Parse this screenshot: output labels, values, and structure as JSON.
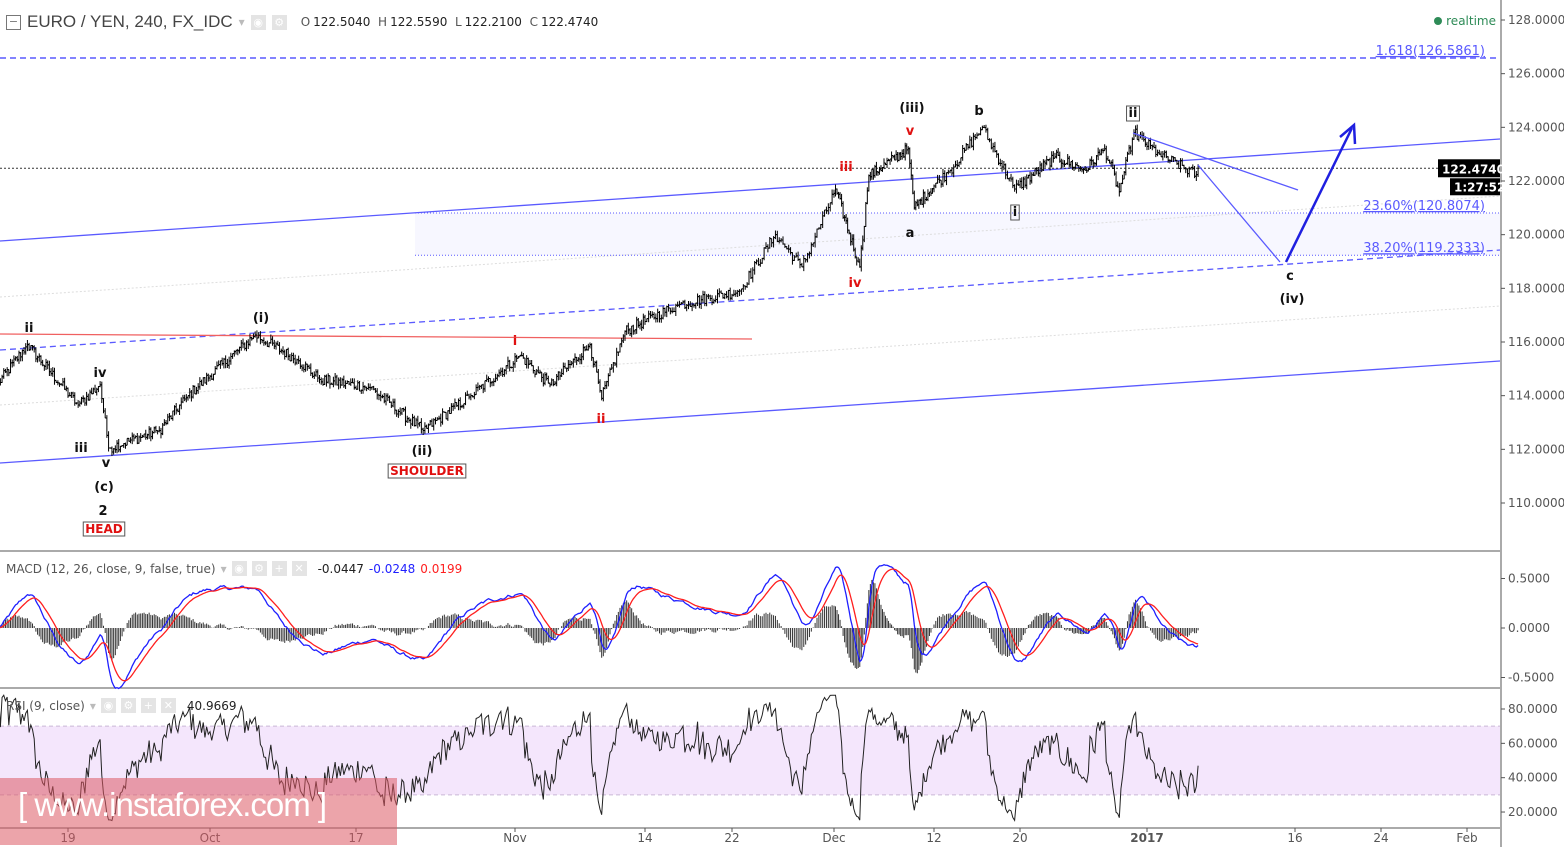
{
  "header": {
    "symbol": "EURO / YEN, 240, FX_IDC",
    "open_label": "O",
    "open": "122.5040",
    "high_label": "H",
    "high": "122.5590",
    "low_label": "L",
    "low": "122.2100",
    "close_label": "C",
    "close": "122.4740",
    "status": "realtime"
  },
  "price_tag": {
    "value": "122.4740",
    "timer": "1:27:52"
  },
  "macd": {
    "title": "MACD (12, 26, close, 9, false, true)",
    "hist": "-0.0447",
    "macd": "-0.0248",
    "signal": "0.0199",
    "ticks": [
      "0.5000",
      "0.0000",
      "-0.5000"
    ]
  },
  "rsi": {
    "title": "RSI (9, close)",
    "value": "40.9669",
    "ticks": [
      "80.0000",
      "60.0000",
      "40.0000",
      "20.0000"
    ]
  },
  "watermark": "[ www.instaforex.com ]",
  "colors": {
    "channel": "#5a5aff",
    "projection": "#1f1fe0",
    "wave_red": "#e01010",
    "macd": "#1f1fff",
    "signal": "#ff1f1f",
    "rsi_band": "#f4e6fc",
    "realtime": "#2e8b57"
  },
  "chart_data": {
    "type": "ohlc-bar",
    "price_axis": {
      "ticks": [
        "128.0000",
        "126.0000",
        "124.0000",
        "122.0000",
        "120.0000",
        "118.0000",
        "116.0000",
        "114.0000",
        "112.0000",
        "110.0000"
      ],
      "range": [
        110,
        128
      ]
    },
    "time_axis": {
      "ticks": [
        {
          "label": "19",
          "date": "2016-09-19"
        },
        {
          "label": "Oct",
          "date": "2016-10-03"
        },
        {
          "label": "17",
          "date": "2016-10-17"
        },
        {
          "label": "Nov",
          "date": "2016-11-01"
        },
        {
          "label": "14",
          "date": "2016-11-14"
        },
        {
          "label": "22",
          "date": "2016-11-22"
        },
        {
          "label": "Dec",
          "date": "2016-12-01"
        },
        {
          "label": "12",
          "date": "2016-12-12"
        },
        {
          "label": "20",
          "date": "2016-12-20"
        },
        {
          "label": "2017",
          "date": "2017-01-02"
        },
        {
          "label": "16",
          "date": "2017-01-16"
        },
        {
          "label": "24",
          "date": "2017-01-24"
        },
        {
          "label": "Feb",
          "date": "2017-02-01"
        }
      ]
    },
    "price_swings": [
      [
        "2016-09-12T00",
        114.4
      ],
      [
        "2016-09-15T00",
        115.9
      ],
      [
        "2016-09-20T00",
        113.65
      ],
      [
        "2016-09-22T04",
        114.4
      ],
      [
        "2016-09-23T00",
        112.05
      ],
      [
        "2016-09-28T00",
        112.7
      ],
      [
        "2016-09-30T20",
        114.0
      ],
      [
        "2016-10-07T08",
        116.26
      ],
      [
        "2016-10-11T12",
        115.3
      ],
      [
        "2016-10-13T12",
        114.6
      ],
      [
        "2016-10-18T08",
        114.3
      ],
      [
        "2016-10-23T08",
        112.7
      ],
      [
        "2016-10-27T20",
        114.0
      ],
      [
        "2016-11-01T12",
        115.5
      ],
      [
        "2016-11-04T12",
        114.4
      ],
      [
        "2016-11-08T12",
        115.9
      ],
      [
        "2016-11-09T16",
        113.9
      ],
      [
        "2016-11-12T00",
        116.4
      ],
      [
        "2016-11-17T04",
        117.4
      ],
      [
        "2016-11-22T16",
        117.9
      ],
      [
        "2016-11-25T20",
        120.0
      ],
      [
        "2016-11-28T04",
        118.8
      ],
      [
        "2016-12-01T04",
        121.7
      ],
      [
        "2016-12-03T20",
        118.8
      ],
      [
        "2016-12-04T20",
        122.2
      ],
      [
        "2016-12-09T04",
        123.2
      ],
      [
        "2016-12-09T20",
        121.0
      ],
      [
        "2016-12-13T12",
        122.4
      ],
      [
        "2016-12-16T12",
        124.0
      ],
      [
        "2016-12-19T12",
        121.7
      ],
      [
        "2016-12-23T14",
        122.9
      ],
      [
        "2016-12-26T16",
        122.4
      ],
      [
        "2016-12-28T16",
        123.2
      ],
      [
        "2016-12-30T04",
        121.6
      ],
      [
        "2016-12-31T16",
        123.8
      ],
      [
        "2017-01-03T04",
        123.0
      ],
      [
        "2017-01-06T20",
        122.2
      ]
    ],
    "fib_levels": [
      {
        "label": "1.618(126.5861)",
        "price": 126.5861
      },
      {
        "label": "23.60%(120.8074)",
        "price": 120.8074
      },
      {
        "label": "38.20%(119.2333)",
        "price": 119.2333
      }
    ],
    "wave_labels": [
      {
        "text": "ii",
        "color": "black"
      },
      {
        "text": "iv",
        "color": "black"
      },
      {
        "text": "iii",
        "color": "black"
      },
      {
        "text": "v",
        "color": "black"
      },
      {
        "text": "(c)",
        "color": "black"
      },
      {
        "text": "2",
        "color": "black"
      },
      {
        "text": "HEAD",
        "color": "red",
        "boxed": true
      },
      {
        "text": "(i)",
        "color": "black"
      },
      {
        "text": "(ii)",
        "color": "black"
      },
      {
        "text": "SHOULDER",
        "color": "red",
        "boxed": true
      },
      {
        "text": "i",
        "color": "red"
      },
      {
        "text": "ii",
        "color": "red"
      },
      {
        "text": "iii",
        "color": "red"
      },
      {
        "text": "v",
        "color": "red"
      },
      {
        "text": "iv",
        "color": "red"
      },
      {
        "text": "(iii)",
        "color": "black"
      },
      {
        "text": "b",
        "color": "black"
      },
      {
        "text": "a",
        "color": "black"
      },
      {
        "text": "i",
        "color": "black",
        "boxed": true
      },
      {
        "text": "ii",
        "color": "black",
        "boxed": true
      },
      {
        "text": "c",
        "color": "black"
      },
      {
        "text": "(iv)",
        "color": "black"
      }
    ],
    "last_price": 122.474,
    "rsi_band": [
      30,
      70
    ],
    "macd_range": [
      -0.6,
      0.7
    ],
    "rsi_range": [
      10,
      90
    ]
  }
}
